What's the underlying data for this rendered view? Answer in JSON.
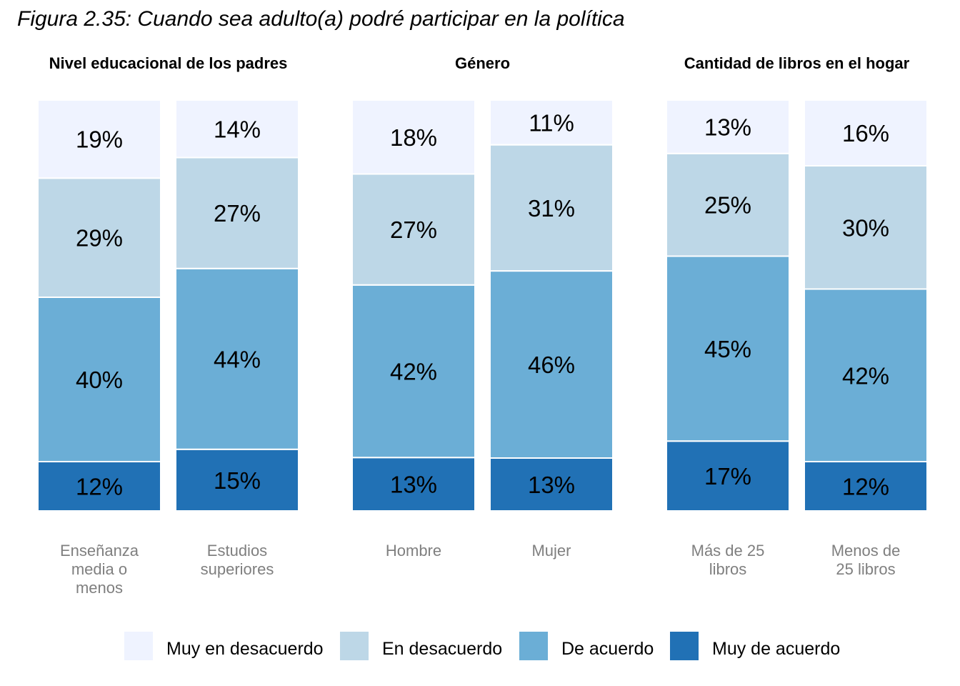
{
  "figure_title": "Figura 2.35: Cuando sea adulto(a) podré participar en la política",
  "chart_data": {
    "type": "bar",
    "stacked": true,
    "value_unit": "%",
    "legend_position": "bottom",
    "segment_order_bottom_to_top": [
      "Muy de acuerdo",
      "De acuerdo",
      "En desacuerdo",
      "Muy en desacuerdo"
    ],
    "legend": [
      {
        "name": "Muy en desacuerdo",
        "color": "#eff3ff"
      },
      {
        "name": "En desacuerdo",
        "color": "#bdd7e7"
      },
      {
        "name": "De acuerdo",
        "color": "#6baed6"
      },
      {
        "name": "Muy de acuerdo",
        "color": "#2171b5"
      }
    ],
    "panels": [
      {
        "title": "Nivel educacional de los padres",
        "bars": [
          {
            "category": [
              "Enseñanza",
              "media o",
              "menos"
            ],
            "values": {
              "Muy de acuerdo": 12,
              "De acuerdo": 40,
              "En desacuerdo": 29,
              "Muy en desacuerdo": 19
            }
          },
          {
            "category": [
              "Estudios",
              "superiores"
            ],
            "values": {
              "Muy de acuerdo": 15,
              "De acuerdo": 44,
              "En desacuerdo": 27,
              "Muy en desacuerdo": 14
            }
          }
        ]
      },
      {
        "title": "Género",
        "bars": [
          {
            "category": [
              "Hombre"
            ],
            "values": {
              "Muy de acuerdo": 13,
              "De acuerdo": 42,
              "En desacuerdo": 27,
              "Muy en desacuerdo": 18
            }
          },
          {
            "category": [
              "Mujer"
            ],
            "values": {
              "Muy de acuerdo": 13,
              "De acuerdo": 46,
              "En desacuerdo": 31,
              "Muy en desacuerdo": 11
            }
          }
        ]
      },
      {
        "title": "Cantidad de libros en el hogar",
        "bars": [
          {
            "category": [
              "Más de 25",
              "libros"
            ],
            "values": {
              "Muy de acuerdo": 17,
              "De acuerdo": 45,
              "En desacuerdo": 25,
              "Muy en desacuerdo": 13
            }
          },
          {
            "category": [
              "Menos de",
              "25 libros"
            ],
            "values": {
              "Muy de acuerdo": 12,
              "De acuerdo": 42,
              "En desacuerdo": 30,
              "Muy en desacuerdo": 16
            }
          }
        ]
      }
    ]
  }
}
